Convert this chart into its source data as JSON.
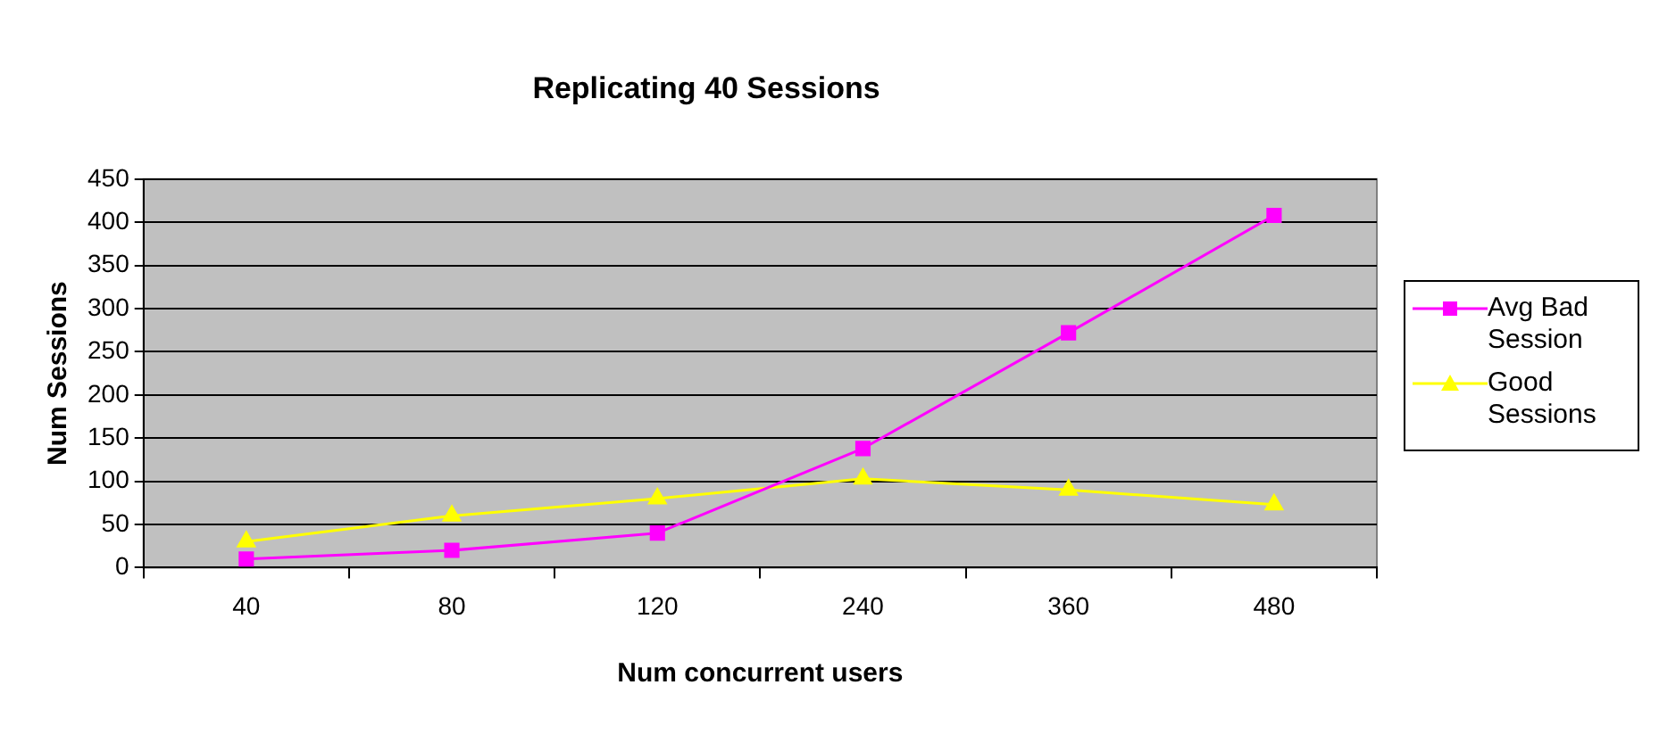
{
  "chart_data": {
    "type": "line",
    "title": "Replicating 40 Sessions",
    "xlabel": "Num concurrent users",
    "ylabel": "Num Sessions",
    "categories": [
      "40",
      "80",
      "120",
      "240",
      "360",
      "480"
    ],
    "series": [
      {
        "name": "Avg Bad Session",
        "color": "#ff00ff",
        "marker": "square",
        "values": [
          10,
          20,
          40,
          138,
          272,
          408
        ]
      },
      {
        "name": "Good Sessions",
        "color": "#ffff00",
        "marker": "triangle",
        "values": [
          30,
          60,
          80,
          103,
          90,
          73
        ]
      }
    ],
    "ylim": [
      0,
      450
    ],
    "yticks": [
      0,
      50,
      100,
      150,
      200,
      250,
      300,
      350,
      400,
      450
    ],
    "grid": "y",
    "legend": "right",
    "line_style": "solid"
  }
}
